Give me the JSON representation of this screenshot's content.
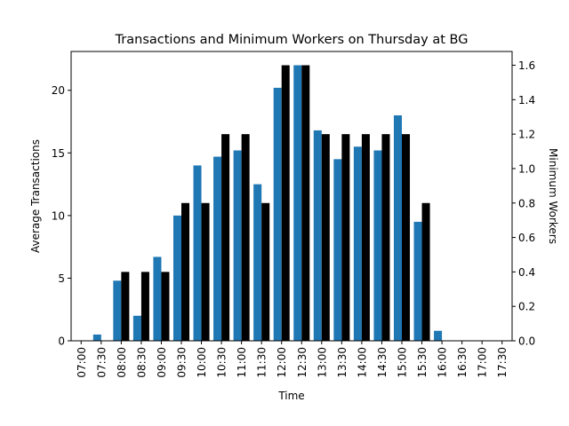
{
  "chart_data": {
    "type": "bar",
    "title": "Transactions and Minimum Workers on Thursday at BG",
    "xlabel": "Time",
    "ylabel_left": "Average Transactions",
    "ylabel_right": "Minimum Workers",
    "categories": [
      "07:00",
      "07:30",
      "08:00",
      "08:30",
      "09:00",
      "09:30",
      "10:00",
      "10:30",
      "11:00",
      "11:30",
      "12:00",
      "12:30",
      "13:00",
      "13:30",
      "14:00",
      "14:30",
      "15:00",
      "15:30",
      "16:00",
      "16:30",
      "17:00",
      "17:30"
    ],
    "series": [
      {
        "axis": "left",
        "color": "#1f77b4",
        "values": [
          0,
          0.5,
          4.8,
          2.0,
          6.7,
          10.0,
          14.0,
          14.7,
          15.2,
          12.5,
          20.2,
          22.0,
          16.8,
          14.5,
          15.5,
          15.2,
          18.0,
          9.5,
          0.8,
          0,
          0,
          0
        ]
      },
      {
        "axis": "right",
        "color": "#000000",
        "values": [
          0,
          0,
          0.4,
          0.4,
          0.4,
          0.8,
          0.8,
          1.2,
          1.2,
          0.8,
          1.6,
          1.6,
          1.2,
          1.2,
          1.2,
          1.2,
          1.2,
          0.8,
          0,
          0,
          0,
          0
        ]
      }
    ],
    "ylim_left": [
      0,
      23.1
    ],
    "ylim_right": [
      0,
      1.68
    ],
    "yticks_left": [
      0,
      5,
      10,
      15,
      20
    ],
    "yticks_right": [
      0.0,
      0.2,
      0.4,
      0.6,
      0.8,
      1.0,
      1.2,
      1.4,
      1.6
    ],
    "yticks_right_labels": [
      "0.0",
      "0.2",
      "0.4",
      "0.6",
      "0.8",
      "1.0",
      "1.2",
      "1.4",
      "1.6"
    ],
    "grid": false,
    "legend": "none"
  }
}
